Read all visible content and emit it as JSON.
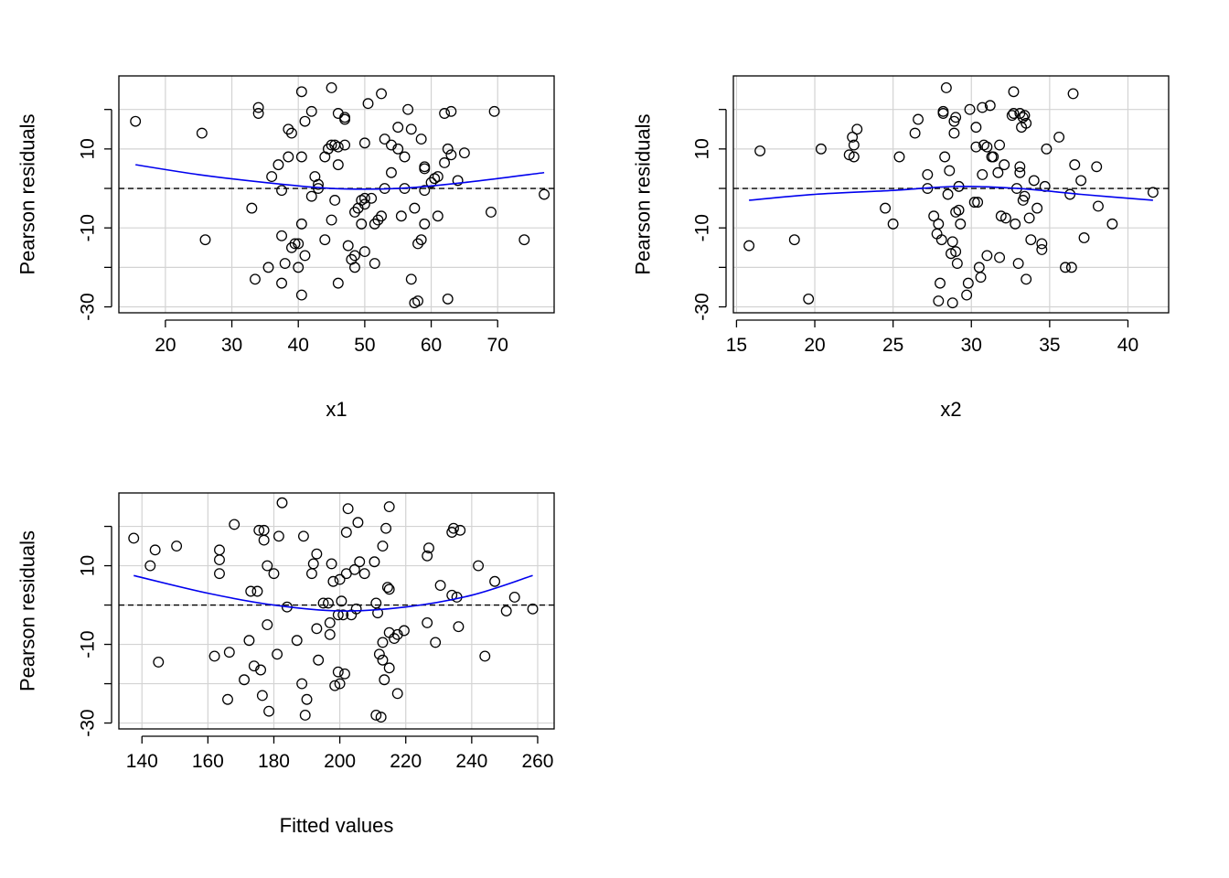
{
  "colors": {
    "points": "#000000",
    "smooth": "#0000ee",
    "reference": "#000000",
    "grid": "#d3d3d3"
  },
  "chart_data": [
    {
      "type": "scatter",
      "xlabel": "x1",
      "ylabel": "Pearson residuals",
      "xlim": [
        13,
        78.5
      ],
      "ylim": [
        -31.5,
        28.5
      ],
      "xticks": [
        20,
        30,
        40,
        50,
        60,
        70
      ],
      "yticks": [
        -30,
        -20,
        -10,
        0,
        10,
        20
      ],
      "ytick_labels": [
        "-30",
        "",
        "-10",
        "",
        "10",
        ""
      ],
      "grid": true,
      "reference_line": 0,
      "points": [
        [
          15.5,
          17
        ],
        [
          25.5,
          14
        ],
        [
          26,
          -13
        ],
        [
          33,
          -5
        ],
        [
          33.5,
          -23
        ],
        [
          34,
          19
        ],
        [
          34,
          20.5
        ],
        [
          35.5,
          -20
        ],
        [
          36,
          3
        ],
        [
          37,
          6
        ],
        [
          37.5,
          -0.5
        ],
        [
          37.5,
          -12
        ],
        [
          37.5,
          -24
        ],
        [
          38,
          -19
        ],
        [
          38.5,
          8
        ],
        [
          38.5,
          15
        ],
        [
          39,
          14
        ],
        [
          39,
          -15
        ],
        [
          39.5,
          -14
        ],
        [
          40,
          -20
        ],
        [
          40,
          -14
        ],
        [
          40.5,
          8
        ],
        [
          40.5,
          -9
        ],
        [
          40.5,
          -27
        ],
        [
          40.5,
          24.5
        ],
        [
          41,
          17
        ],
        [
          41,
          -17
        ],
        [
          42,
          -2
        ],
        [
          42,
          19.5
        ],
        [
          42.5,
          3
        ],
        [
          43,
          0
        ],
        [
          43,
          1
        ],
        [
          44,
          8
        ],
        [
          44,
          -13
        ],
        [
          44.5,
          10
        ],
        [
          45,
          11
        ],
        [
          45,
          -8
        ],
        [
          45,
          25.5
        ],
        [
          45.5,
          11
        ],
        [
          45.5,
          -3
        ],
        [
          46,
          6
        ],
        [
          46,
          19
        ],
        [
          46,
          -24
        ],
        [
          46,
          10.5
        ],
        [
          47,
          18
        ],
        [
          47,
          17.5
        ],
        [
          47,
          11
        ],
        [
          47.5,
          -14.5
        ],
        [
          48,
          -18
        ],
        [
          48.5,
          -17
        ],
        [
          48.5,
          -20
        ],
        [
          48.5,
          -6
        ],
        [
          49,
          -5
        ],
        [
          49.5,
          -9
        ],
        [
          49.5,
          -3
        ],
        [
          50,
          -4
        ],
        [
          50,
          -2.5
        ],
        [
          50,
          11.5
        ],
        [
          50,
          -16
        ],
        [
          50.5,
          21.5
        ],
        [
          51,
          -2.5
        ],
        [
          51.5,
          -19
        ],
        [
          51.5,
          -9
        ],
        [
          52,
          -8
        ],
        [
          52.5,
          -7
        ],
        [
          52.5,
          24
        ],
        [
          53,
          0
        ],
        [
          53,
          12.5
        ],
        [
          54,
          4
        ],
        [
          54,
          11
        ],
        [
          55,
          10
        ],
        [
          55,
          15.5
        ],
        [
          55.5,
          -7
        ],
        [
          56,
          0
        ],
        [
          56,
          8
        ],
        [
          56.5,
          20
        ],
        [
          57,
          15
        ],
        [
          57,
          -23
        ],
        [
          57.5,
          -5
        ],
        [
          57.5,
          -29
        ],
        [
          58,
          -14
        ],
        [
          58,
          -28.5
        ],
        [
          58.5,
          -13
        ],
        [
          58.5,
          12.5
        ],
        [
          59,
          -0.5
        ],
        [
          59,
          5
        ],
        [
          59,
          5.5
        ],
        [
          59,
          -9
        ],
        [
          60,
          1.5
        ],
        [
          60.5,
          2.5
        ],
        [
          61,
          -7
        ],
        [
          61,
          3
        ],
        [
          62,
          6.5
        ],
        [
          62,
          19
        ],
        [
          62.5,
          -28
        ],
        [
          62.5,
          10
        ],
        [
          63,
          8.5
        ],
        [
          63,
          19.5
        ],
        [
          64,
          2
        ],
        [
          65,
          9
        ],
        [
          69,
          -6
        ],
        [
          69.5,
          19.5
        ],
        [
          74,
          -13
        ],
        [
          77,
          -1.5
        ]
      ],
      "smooth": [
        [
          15.5,
          6
        ],
        [
          25,
          3.5
        ],
        [
          35,
          1.5
        ],
        [
          45,
          0
        ],
        [
          55,
          0
        ],
        [
          65,
          1.5
        ],
        [
          77,
          4
        ]
      ]
    },
    {
      "type": "scatter",
      "xlabel": "x2",
      "ylabel": "Pearson residuals",
      "xlim": [
        14.8,
        42.6
      ],
      "ylim": [
        -31.5,
        28.5
      ],
      "xticks": [
        15,
        20,
        25,
        30,
        35,
        40
      ],
      "yticks": [
        -30,
        -20,
        -10,
        0,
        10,
        20
      ],
      "ytick_labels": [
        "-30",
        "",
        "-10",
        "",
        "10",
        ""
      ],
      "grid": true,
      "reference_line": 0,
      "points": [
        [
          15.8,
          -14.5
        ],
        [
          16.5,
          9.5
        ],
        [
          18.7,
          -13
        ],
        [
          19.6,
          -28
        ],
        [
          20.4,
          10
        ],
        [
          22.2,
          8.5
        ],
        [
          22.4,
          13
        ],
        [
          22.5,
          11
        ],
        [
          22.5,
          8
        ],
        [
          22.7,
          15
        ],
        [
          24.5,
          -5
        ],
        [
          25,
          -9
        ],
        [
          25.4,
          8
        ],
        [
          26.4,
          14
        ],
        [
          26.6,
          17.5
        ],
        [
          27.2,
          3.5
        ],
        [
          27.2,
          0
        ],
        [
          27.6,
          -7
        ],
        [
          27.8,
          -11.5
        ],
        [
          27.9,
          -9
        ],
        [
          27.9,
          -28.5
        ],
        [
          28,
          -24
        ],
        [
          28.1,
          -13
        ],
        [
          28.2,
          19
        ],
        [
          28.2,
          19.5
        ],
        [
          28.3,
          8
        ],
        [
          28.4,
          25.5
        ],
        [
          28.5,
          -1.5
        ],
        [
          28.6,
          4.5
        ],
        [
          28.7,
          -16.5
        ],
        [
          28.8,
          -13.5
        ],
        [
          28.8,
          -29
        ],
        [
          28.9,
          14
        ],
        [
          28.9,
          17
        ],
        [
          29,
          -6
        ],
        [
          29,
          -16
        ],
        [
          29,
          18
        ],
        [
          29.1,
          -19
        ],
        [
          29.2,
          -5.5
        ],
        [
          29.2,
          0.5
        ],
        [
          29.3,
          -9
        ],
        [
          29.7,
          -27
        ],
        [
          29.8,
          -24
        ],
        [
          29.9,
          20
        ],
        [
          30.2,
          -3.5
        ],
        [
          30.3,
          10.5
        ],
        [
          30.3,
          15.5
        ],
        [
          30.4,
          -3.5
        ],
        [
          30.5,
          -20
        ],
        [
          30.6,
          -22.5
        ],
        [
          30.7,
          3.5
        ],
        [
          30.7,
          20.5
        ],
        [
          30.8,
          11
        ],
        [
          31,
          -17
        ],
        [
          31,
          10.5
        ],
        [
          31.2,
          21
        ],
        [
          31.3,
          8
        ],
        [
          31.4,
          8
        ],
        [
          31.7,
          4
        ],
        [
          31.8,
          11
        ],
        [
          31.8,
          -17.5
        ],
        [
          31.9,
          -7
        ],
        [
          32.1,
          6
        ],
        [
          32.2,
          -7.5
        ],
        [
          32.6,
          18.5
        ],
        [
          32.7,
          19
        ],
        [
          32.7,
          24.5
        ],
        [
          32.8,
          -9
        ],
        [
          32.9,
          0
        ],
        [
          33,
          -19
        ],
        [
          33.1,
          4
        ],
        [
          33.1,
          5.5
        ],
        [
          33.1,
          19
        ],
        [
          33.2,
          15.5
        ],
        [
          33.3,
          18
        ],
        [
          33.3,
          -3
        ],
        [
          33.4,
          -2
        ],
        [
          33.4,
          18.5
        ],
        [
          33.5,
          16.5
        ],
        [
          33.5,
          -23
        ],
        [
          33.7,
          -7.5
        ],
        [
          33.8,
          -13
        ],
        [
          34,
          2
        ],
        [
          34.2,
          -5
        ],
        [
          34.5,
          -14
        ],
        [
          34.5,
          -15.5
        ],
        [
          34.7,
          0.5
        ],
        [
          34.8,
          10
        ],
        [
          35.6,
          13
        ],
        [
          36,
          -20
        ],
        [
          36.3,
          -1.5
        ],
        [
          36.4,
          -20
        ],
        [
          36.5,
          24
        ],
        [
          36.6,
          6
        ],
        [
          37,
          2
        ],
        [
          37.2,
          -12.5
        ],
        [
          38,
          5.5
        ],
        [
          38.1,
          -4.5
        ],
        [
          39,
          -9
        ],
        [
          41.6,
          -1
        ]
      ],
      "smooth": [
        [
          15.8,
          -3
        ],
        [
          20,
          -1.5
        ],
        [
          25,
          -0.5
        ],
        [
          29,
          0.5
        ],
        [
          33,
          0
        ],
        [
          37,
          -1.5
        ],
        [
          41.6,
          -3
        ]
      ]
    },
    {
      "type": "scatter",
      "xlabel": "Fitted values",
      "ylabel": "Pearson residuals",
      "xlim": [
        133,
        265
      ],
      "ylim": [
        -31.5,
        28.5
      ],
      "xticks": [
        140,
        160,
        180,
        200,
        220,
        240,
        260
      ],
      "yticks": [
        -30,
        -20,
        -10,
        0,
        10,
        20
      ],
      "ytick_labels": [
        "-30",
        "",
        "-10",
        "",
        "10",
        ""
      ],
      "grid": true,
      "reference_line": 0,
      "points": [
        [
          137.5,
          17
        ],
        [
          142.5,
          10
        ],
        [
          144,
          14
        ],
        [
          145,
          -14.5
        ],
        [
          150.5,
          15
        ],
        [
          162,
          -13
        ],
        [
          163.5,
          11.5
        ],
        [
          163.5,
          14
        ],
        [
          163.5,
          8
        ],
        [
          166,
          -24
        ],
        [
          166.5,
          -12
        ],
        [
          168,
          20.5
        ],
        [
          171,
          -19
        ],
        [
          172.5,
          -9
        ],
        [
          173,
          3.5
        ],
        [
          174,
          -15.5
        ],
        [
          175,
          3.5
        ],
        [
          175.5,
          19
        ],
        [
          176,
          -16.5
        ],
        [
          176.5,
          -23
        ],
        [
          177,
          19
        ],
        [
          177,
          16.5
        ],
        [
          178,
          10
        ],
        [
          178,
          -5
        ],
        [
          178.5,
          -27
        ],
        [
          180,
          8
        ],
        [
          181,
          -12.5
        ],
        [
          181.5,
          17.5
        ],
        [
          182.5,
          26
        ],
        [
          184,
          -0.5
        ],
        [
          187,
          -9
        ],
        [
          188.5,
          -20
        ],
        [
          189,
          17.5
        ],
        [
          189.5,
          -28
        ],
        [
          190,
          -24
        ],
        [
          191.5,
          8
        ],
        [
          192,
          10.5
        ],
        [
          193,
          -6
        ],
        [
          193,
          13
        ],
        [
          193.5,
          -14
        ],
        [
          195,
          0.5
        ],
        [
          196.5,
          0.5
        ],
        [
          197,
          -4.5
        ],
        [
          197,
          -7.5
        ],
        [
          197.5,
          10.5
        ],
        [
          198,
          6
        ],
        [
          198.5,
          -20.5
        ],
        [
          199.5,
          -2.5
        ],
        [
          199.5,
          -17
        ],
        [
          200,
          6.5
        ],
        [
          200,
          -20
        ],
        [
          200.5,
          1
        ],
        [
          201,
          -2.5
        ],
        [
          201.5,
          -17.5
        ],
        [
          202,
          18.5
        ],
        [
          202,
          8
        ],
        [
          202.5,
          24.5
        ],
        [
          203.5,
          -2.5
        ],
        [
          204.5,
          9
        ],
        [
          205,
          -1
        ],
        [
          205.5,
          21
        ],
        [
          206,
          11
        ],
        [
          207.5,
          8
        ],
        [
          210.5,
          11
        ],
        [
          211,
          -28
        ],
        [
          211,
          0.5
        ],
        [
          211.5,
          -2
        ],
        [
          212,
          -12.5
        ],
        [
          212.5,
          -28.5
        ],
        [
          213,
          -9.5
        ],
        [
          213,
          -14
        ],
        [
          213,
          15
        ],
        [
          213.5,
          -19
        ],
        [
          214,
          19.5
        ],
        [
          214.5,
          4.5
        ],
        [
          215,
          4
        ],
        [
          215,
          -7
        ],
        [
          215,
          25
        ],
        [
          215,
          -16
        ],
        [
          216.5,
          -8.5
        ],
        [
          217.5,
          -22.5
        ],
        [
          217.5,
          -7.5
        ],
        [
          219.5,
          -6.5
        ],
        [
          226.5,
          -4.5
        ],
        [
          226.5,
          12.5
        ],
        [
          227,
          14.5
        ],
        [
          229,
          -9.5
        ],
        [
          230.5,
          5
        ],
        [
          234,
          2.5
        ],
        [
          234,
          18.5
        ],
        [
          234.5,
          19.5
        ],
        [
          235.5,
          2
        ],
        [
          236,
          -5.5
        ],
        [
          236.5,
          19
        ],
        [
          242,
          10
        ],
        [
          244,
          -13
        ],
        [
          247,
          6
        ],
        [
          250.5,
          -1.5
        ],
        [
          253,
          2
        ],
        [
          258.5,
          -1
        ]
      ],
      "smooth": [
        [
          137.5,
          7.5
        ],
        [
          160,
          3
        ],
        [
          180,
          0
        ],
        [
          200,
          -1.5
        ],
        [
          220,
          -0.5
        ],
        [
          240,
          2.5
        ],
        [
          258.5,
          7.5
        ]
      ]
    }
  ]
}
